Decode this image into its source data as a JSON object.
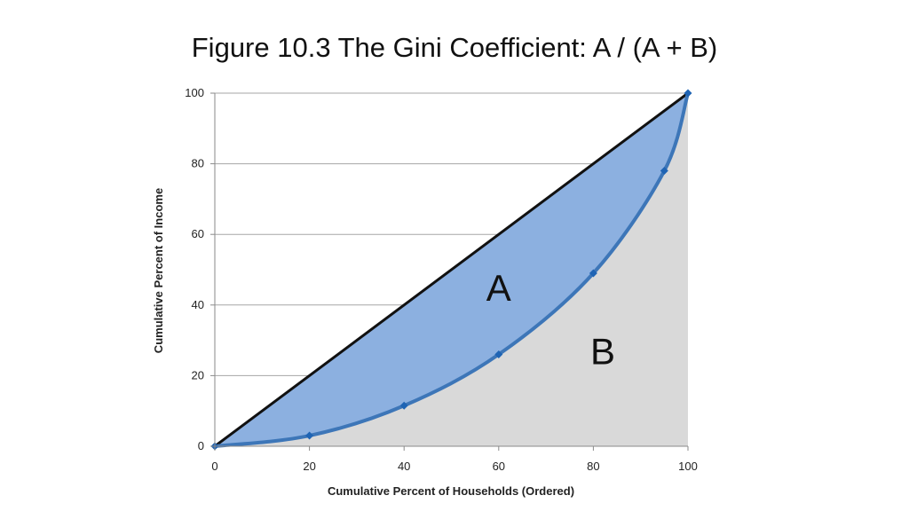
{
  "chart_data": {
    "type": "line",
    "title": "Figure 10.3 The Gini Coefficient: A / (A + B)",
    "xlabel": "Cumulative Percent of Households (Ordered)",
    "ylabel": "Cumulative Percent of Income",
    "xlim": [
      0,
      100
    ],
    "ylim": [
      0,
      100
    ],
    "x_ticks": [
      0,
      20,
      40,
      60,
      80,
      100
    ],
    "y_ticks": [
      0,
      20,
      40,
      60,
      80,
      100
    ],
    "grid": "horizontal",
    "series": [
      {
        "points": [
          [
            0,
            0
          ],
          [
            20,
            3
          ],
          [
            40,
            11.5
          ],
          [
            60,
            26
          ],
          [
            80,
            49
          ],
          [
            95,
            78
          ],
          [
            100,
            100
          ]
        ]
      },
      {
        "points": [
          [
            0,
            0
          ],
          [
            100,
            100
          ]
        ]
      }
    ],
    "annotations": [
      {
        "text": "A",
        "x": 60,
        "y": 45
      },
      {
        "text": "B",
        "x": 82,
        "y": 27
      }
    ],
    "colors": {
      "curve": "#3d76b8",
      "marker": "#1f64b4",
      "area_a": "#8cb0e0",
      "area_b": "#d9d9d9",
      "equality": "#111111",
      "grid": "#a6a6a6"
    }
  }
}
